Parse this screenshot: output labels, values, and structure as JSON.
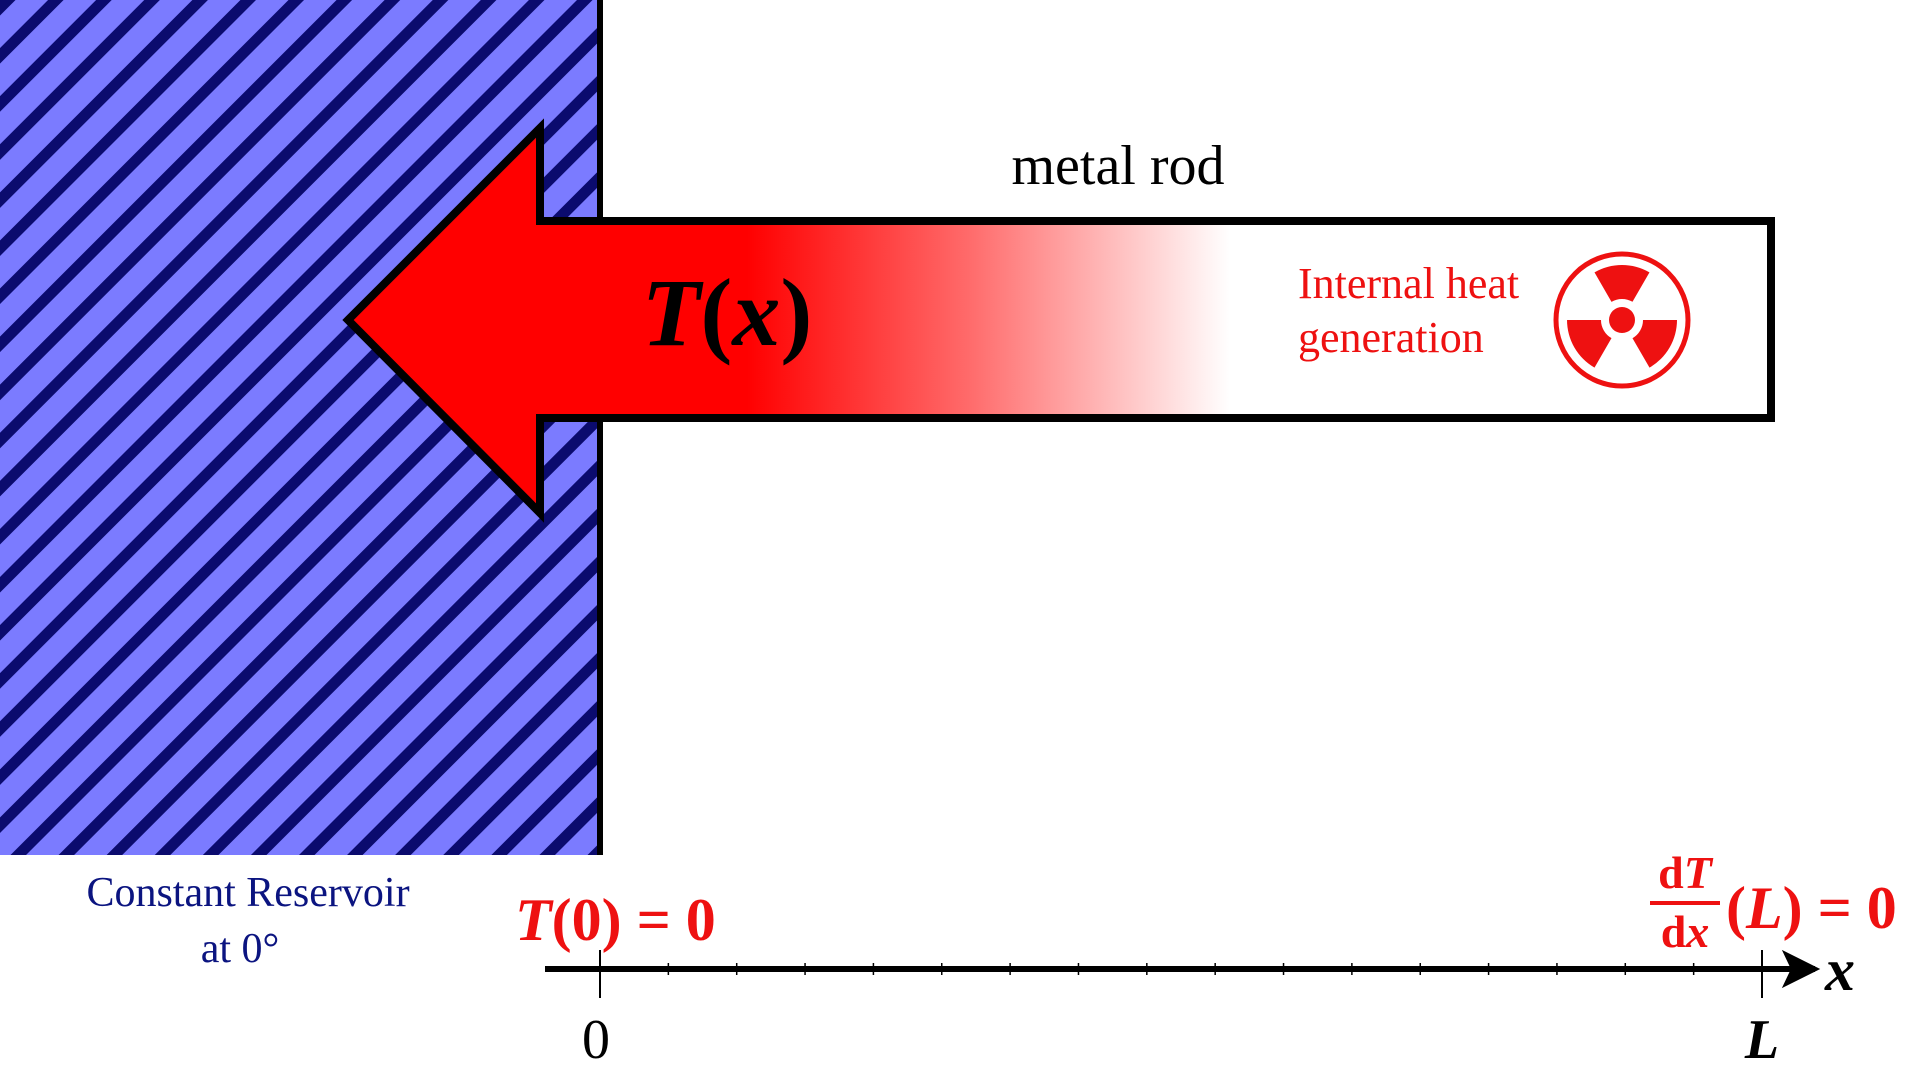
{
  "rod": {
    "label": "metal rod",
    "temperature_label_T": "T",
    "temperature_label_open": "(",
    "temperature_label_x": "x",
    "temperature_label_close": ")"
  },
  "heat_source": {
    "line1": "Internal heat",
    "line2": "generation",
    "icon": "radiation-icon"
  },
  "reservoir": {
    "line1": "Constant Reservoir",
    "line2": "at 0°"
  },
  "boundary_left": {
    "T": "T",
    "rest": "(0) = 0"
  },
  "boundary_right": {
    "num_d": "d",
    "num_T": "T",
    "den_d": "d",
    "den_x": "x",
    "open": "(",
    "L": "L",
    "rest": ") = 0"
  },
  "axis": {
    "variable": "x",
    "tick_start": "0",
    "tick_end": "L"
  },
  "colors": {
    "reservoir_fill": "#7b7bff",
    "reservoir_stripe": "#0b0b6e",
    "hot": "#ff0000",
    "annotation_red": "#ee1111",
    "reservoir_text": "#0b1480",
    "outline": "#000000"
  }
}
